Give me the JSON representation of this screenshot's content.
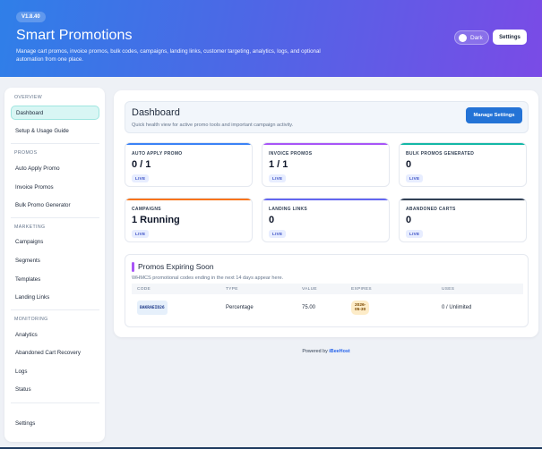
{
  "header": {
    "version": "V1.8.40",
    "title": "Smart Promotions",
    "description": "Manage cart promos, invoice promos, bulk codes, campaigns, landing links, customer targeting, analytics, logs, and optional automation from one place.",
    "dark_toggle_label": "Dark",
    "settings_label": "Settings"
  },
  "sidebar": {
    "sections": [
      {
        "title": "OVERVIEW",
        "items": [
          "Dashboard",
          "Setup & Usage Guide"
        ]
      },
      {
        "title": "PROMOS",
        "items": [
          "Auto Apply Promo",
          "Invoice Promos",
          "Bulk Promo Generator"
        ]
      },
      {
        "title": "MARKETING",
        "items": [
          "Campaigns",
          "Segments",
          "Templates",
          "Landing Links"
        ]
      },
      {
        "title": "MONITORING",
        "items": [
          "Analytics",
          "Abandoned Cart Recovery",
          "Logs",
          "Status"
        ]
      }
    ],
    "settings_label": "Settings",
    "active_item": "Dashboard"
  },
  "dashboard": {
    "title": "Dashboard",
    "subtitle": "Quick health view for active promo tools and important campaign activity.",
    "manage_button": "Manage Settings"
  },
  "cards": [
    {
      "label": "AUTO APPLY PROMO",
      "value": "0 / 1",
      "badge": "LIVE",
      "accent": "#3b82f6"
    },
    {
      "label": "INVOICE PROMOS",
      "value": "1 / 1",
      "badge": "LIVE",
      "accent": "#a855f7"
    },
    {
      "label": "BULK PROMOS GENERATED",
      "value": "0",
      "badge": "LIVE",
      "accent": "#14b8a6"
    },
    {
      "label": "CAMPAIGNS",
      "value": "1 Running",
      "badge": "LIVE",
      "accent": "#f97316"
    },
    {
      "label": "LANDING LINKS",
      "value": "0",
      "badge": "LIVE",
      "accent": "#6366f1"
    },
    {
      "label": "ABANDONED CARTS",
      "value": "0",
      "badge": "LIVE",
      "accent": "#334155"
    }
  ],
  "expiring": {
    "title": "Promos Expiring Soon",
    "subtitle": "WHMCS promotional codes ending in the next 14 days appear here.",
    "columns": [
      "CODE",
      "TYPE",
      "VALUE",
      "EXPIRES",
      "USES"
    ],
    "rows": [
      {
        "code": "BAKRAEID26",
        "type": "Percentage",
        "value": "75.00",
        "expires": "2026-05-30",
        "uses": "0 / Unlimited"
      }
    ]
  },
  "footer": {
    "prefix": "Powered by",
    "brand": "iBeeHost"
  }
}
